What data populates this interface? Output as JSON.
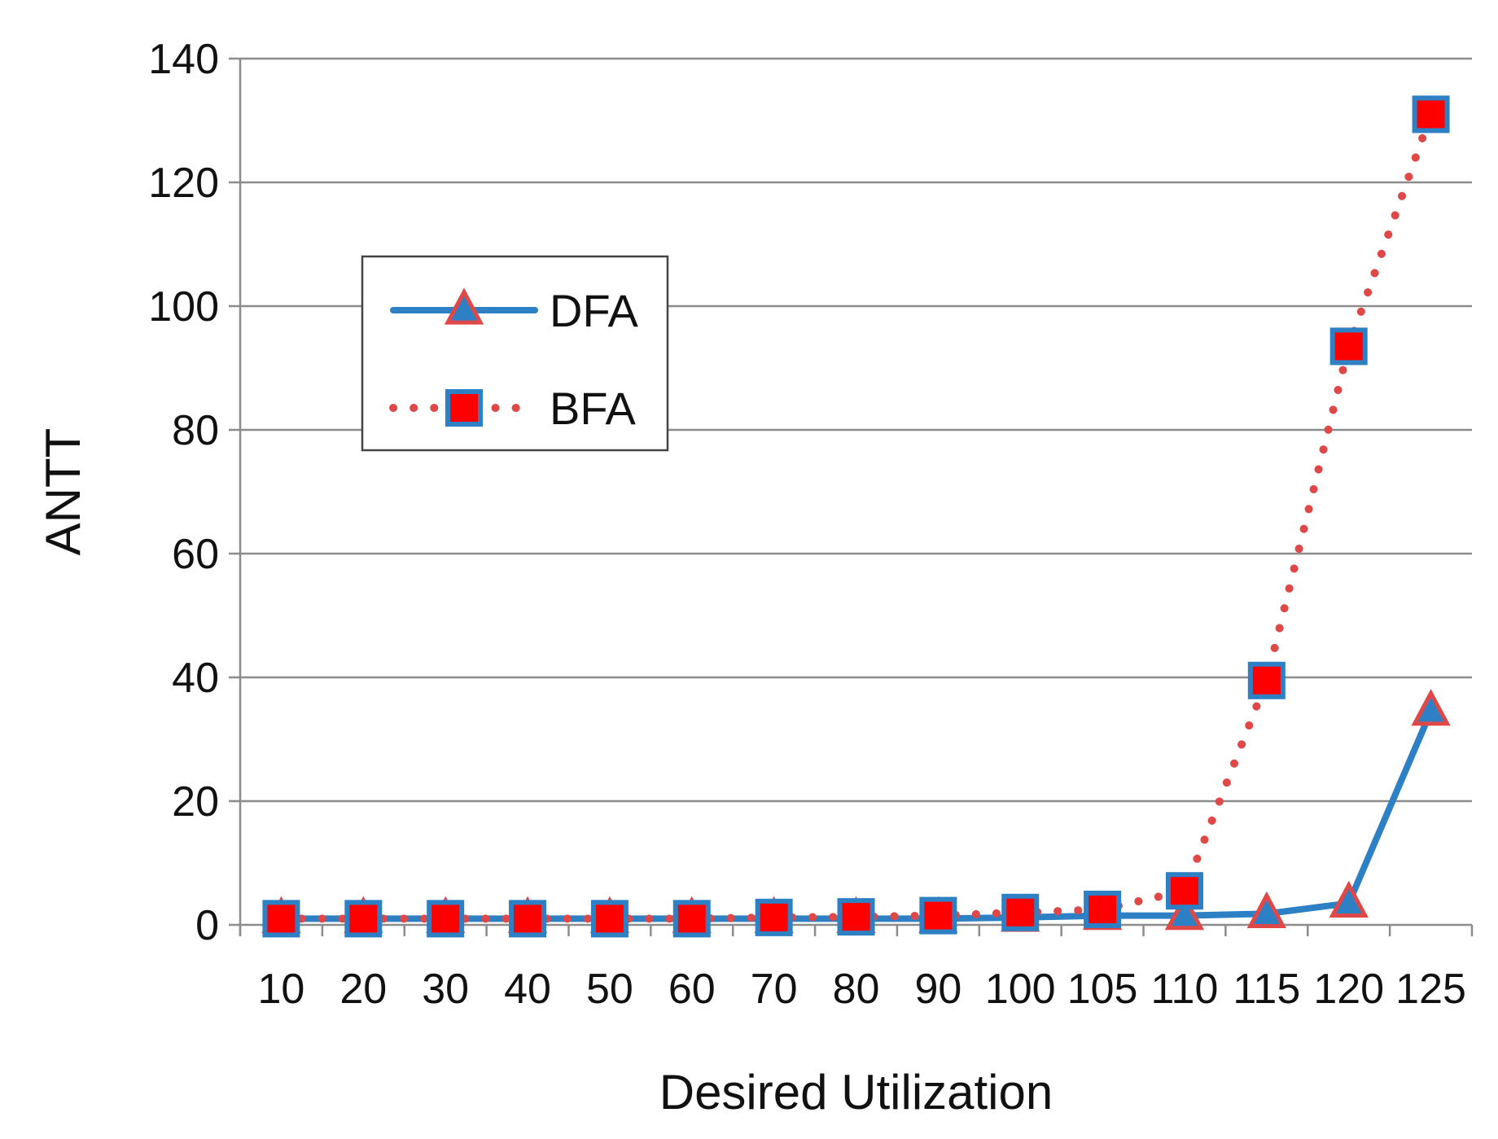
{
  "chart_data": {
    "type": "line",
    "title": "",
    "xlabel": "Desired Utilization",
    "ylabel": "ANTT",
    "categories": [
      "10",
      "20",
      "30",
      "40",
      "50",
      "60",
      "70",
      "80",
      "90",
      "100",
      "105",
      "110",
      "115",
      "120",
      "125"
    ],
    "ylim": [
      0,
      140
    ],
    "yticks": [
      0,
      20,
      40,
      60,
      80,
      100,
      120,
      140
    ],
    "grid": true,
    "legend_position": "upper-left",
    "series": [
      {
        "name": "DFA",
        "style": "solid",
        "marker": "triangle",
        "line_color": "#2e80c4",
        "marker_fill": "#2e80c4",
        "marker_edge": "#e04848",
        "values": [
          1.0,
          1.0,
          1.0,
          1.0,
          1.0,
          1.0,
          1.0,
          1.0,
          1.0,
          1.2,
          1.5,
          1.5,
          1.8,
          3.5,
          34.5
        ]
      },
      {
        "name": "BFA",
        "style": "dotted",
        "marker": "square",
        "line_color": "#e04848",
        "marker_fill": "#ff0000",
        "marker_edge": "#2e80c4",
        "values": [
          1.0,
          1.0,
          1.0,
          1.0,
          1.0,
          1.0,
          1.2,
          1.3,
          1.5,
          2.0,
          2.5,
          5.5,
          39.5,
          93.5,
          131.0
        ]
      }
    ]
  }
}
